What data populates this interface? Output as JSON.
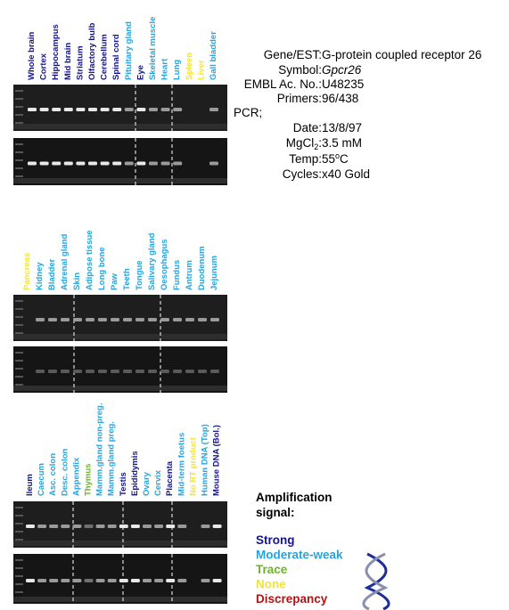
{
  "gene_info": {
    "rows": [
      {
        "key": "Gene/EST:",
        "value": "G-protein coupled receptor 26"
      },
      {
        "key": "Symbol:",
        "value": "Gpcr26"
      },
      {
        "key": "EMBL Ac. No.:",
        "value": "U48235"
      },
      {
        "key": "Primers:",
        "value": "96/438"
      }
    ],
    "pcr_heading": "PCR;",
    "date": {
      "key": "Date:",
      "value": "13/8/97"
    },
    "mgcl": {
      "key": "MgCl",
      "sub": "2",
      "colon": ":",
      "value": "3.5 mM"
    },
    "temp": {
      "key": "Temp:",
      "value": "55",
      "sup": "o",
      "unit": "C"
    },
    "cycles": {
      "key": "Cycles:",
      "value": "x40 Gold"
    }
  },
  "legend": {
    "title": "Amplification",
    "title2": "signal:",
    "items": [
      {
        "label": "Strong",
        "color": "#14148c"
      },
      {
        "label": "Moderate-weak",
        "color": "#27a4dc"
      },
      {
        "label": "Trace",
        "color": "#6cb424"
      },
      {
        "label": "None",
        "color": "#f2e33a"
      },
      {
        "label": "Discrepancy",
        "color": "#b01414"
      }
    ]
  },
  "panels": [
    {
      "lanes": [
        {
          "label": "Whole brain",
          "signal": "Strong"
        },
        {
          "label": "Cortex",
          "signal": "Strong"
        },
        {
          "label": "Hippocampus",
          "signal": "Strong"
        },
        {
          "label": "Mid brain",
          "signal": "Strong"
        },
        {
          "label": "Striatum",
          "signal": "Strong"
        },
        {
          "label": "Olfactory bulb",
          "signal": "Strong"
        },
        {
          "label": "Cerebellum",
          "signal": "Strong"
        },
        {
          "label": "Spinal cord",
          "signal": "Strong"
        },
        {
          "label": "Pituitary gland",
          "signal": "Moderate-weak"
        },
        {
          "label": "Eye",
          "signal": "Strong"
        },
        {
          "label": "Skeletal muscle",
          "signal": "Moderate-weak"
        },
        {
          "label": "Heart",
          "signal": "Moderate-weak"
        },
        {
          "label": "Lung",
          "signal": "Moderate-weak"
        },
        {
          "label": "Spleen",
          "signal": "None"
        },
        {
          "label": "Liver",
          "signal": "None"
        },
        {
          "label": "Gall bladder",
          "signal": "Moderate-weak"
        }
      ]
    },
    {
      "lanes": [
        {
          "label": "Pancreas",
          "signal": "None"
        },
        {
          "label": "Kidney",
          "signal": "Moderate-weak"
        },
        {
          "label": "Bladder",
          "signal": "Moderate-weak"
        },
        {
          "label": "Adrenal gland",
          "signal": "Moderate-weak"
        },
        {
          "label": "Skin",
          "signal": "Moderate-weak"
        },
        {
          "label": "Adipose tissue",
          "signal": "Moderate-weak"
        },
        {
          "label": "Long bone",
          "signal": "Moderate-weak"
        },
        {
          "label": "Paw",
          "signal": "Moderate-weak"
        },
        {
          "label": "Teeth",
          "signal": "Moderate-weak"
        },
        {
          "label": "Tongue",
          "signal": "Moderate-weak"
        },
        {
          "label": "Salivary gland",
          "signal": "Moderate-weak"
        },
        {
          "label": "Oesophagus",
          "signal": "Moderate-weak"
        },
        {
          "label": "Fundus",
          "signal": "Moderate-weak"
        },
        {
          "label": "Antrum",
          "signal": "Moderate-weak"
        },
        {
          "label": "Duodenum",
          "signal": "Moderate-weak"
        },
        {
          "label": "Jejunum",
          "signal": "Moderate-weak"
        }
      ]
    },
    {
      "lanes": [
        {
          "label": "Ileum",
          "signal": "Strong"
        },
        {
          "label": "Caecum",
          "signal": "Moderate-weak"
        },
        {
          "label": "Asc. colon",
          "signal": "Moderate-weak"
        },
        {
          "label": "Desc. colon",
          "signal": "Moderate-weak"
        },
        {
          "label": "Appendix",
          "signal": "Moderate-weak"
        },
        {
          "label": "Thymus",
          "signal": "Trace"
        },
        {
          "label": "Mamm.gland non-preg.",
          "signal": "Moderate-weak"
        },
        {
          "label": "Mamm.gland preg.",
          "signal": "Moderate-weak"
        },
        {
          "label": "Testis",
          "signal": "Strong"
        },
        {
          "label": "Epididymis",
          "signal": "Strong"
        },
        {
          "label": "Ovary",
          "signal": "Moderate-weak"
        },
        {
          "label": "Cervix",
          "signal": "Moderate-weak"
        },
        {
          "label": "Placenta",
          "signal": "Strong"
        },
        {
          "label": "Mid-term foetus",
          "signal": "Moderate-weak"
        },
        {
          "label": "No RT product",
          "signal": "None"
        },
        {
          "label": "Human DNA (Top)",
          "signal": "Moderate-weak"
        },
        {
          "label": "Mouse DNA (Bol.)",
          "signal": "Strong"
        }
      ]
    }
  ]
}
